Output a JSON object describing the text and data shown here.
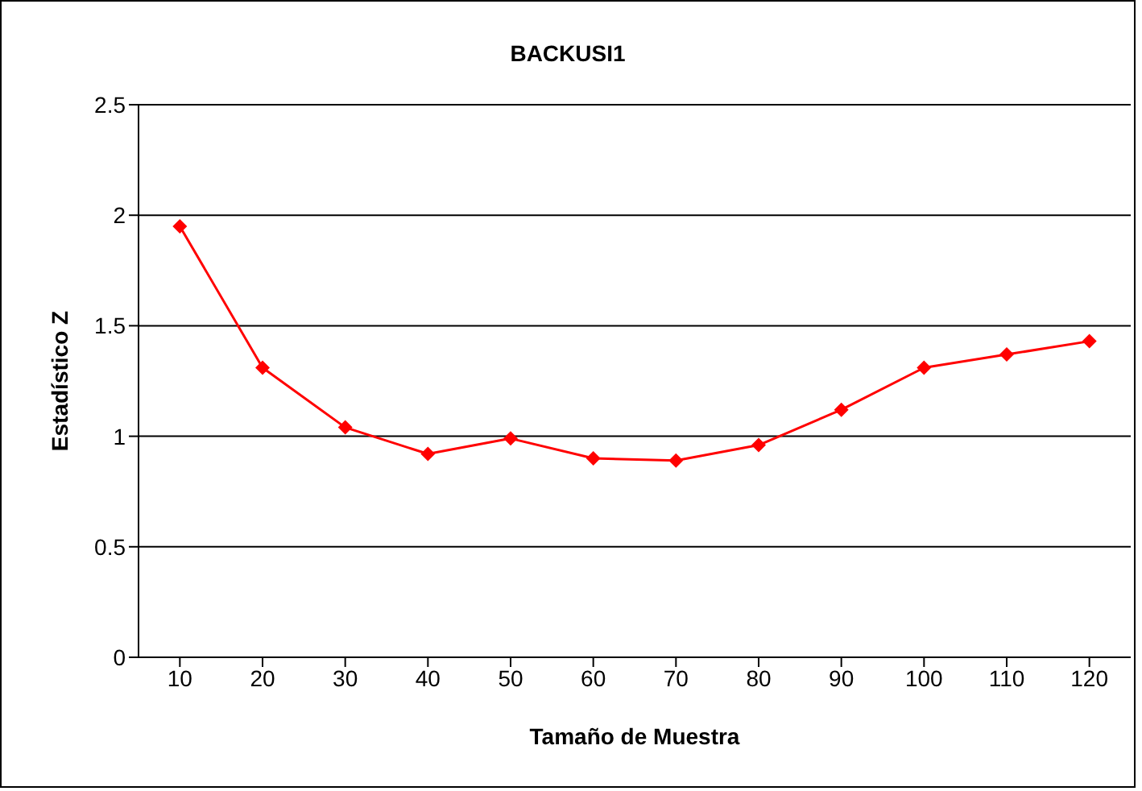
{
  "chart_data": {
    "type": "line",
    "title": "BACKUSI1",
    "xlabel": "Tamaño de Muestra",
    "ylabel": "Estadístico Z",
    "categories": [
      "10",
      "20",
      "30",
      "40",
      "50",
      "60",
      "70",
      "80",
      "90",
      "100",
      "110",
      "120"
    ],
    "series": [
      {
        "color": "#ff0000",
        "values": [
          1.95,
          1.31,
          1.04,
          0.92,
          0.99,
          0.9,
          0.89,
          0.96,
          1.12,
          1.31,
          1.37,
          1.43
        ]
      }
    ],
    "ylim": [
      0,
      2.5
    ],
    "yticks": [
      0,
      0.5,
      1,
      1.5,
      2,
      2.5
    ],
    "grid": "y",
    "marker": "diamond",
    "line_style": "solid"
  }
}
